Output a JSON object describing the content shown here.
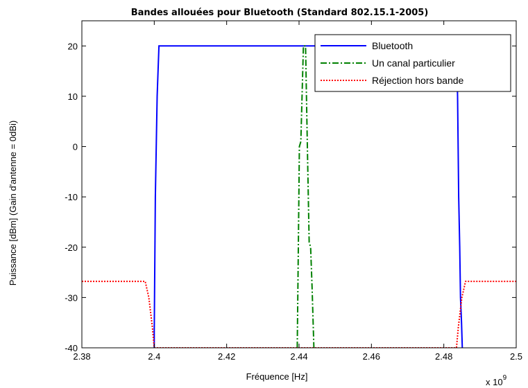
{
  "chart_data": {
    "type": "line",
    "title": "Bandes allouées pour Bluetooth (Standard 802.15.1-2005)",
    "xlabel": "Fréquence [Hz]",
    "ylabel": "Puissance [dBm] (Gain d'antenne = 0dBi)",
    "x_exponent_base": "x 10",
    "x_exponent_power": "9",
    "xlim": [
      2.38,
      2.5
    ],
    "ylim": [
      -40,
      25
    ],
    "x_ticks": [
      2.38,
      2.4,
      2.42,
      2.44,
      2.46,
      2.48,
      2.5
    ],
    "x_tick_labels": [
      "2.38",
      "2.4",
      "2.42",
      "2.44",
      "2.46",
      "2.48",
      "2.5"
    ],
    "y_ticks": [
      -40,
      -30,
      -20,
      -10,
      0,
      10,
      20
    ],
    "y_tick_labels": [
      "-40",
      "-30",
      "-20",
      "-10",
      "0",
      "10",
      "20"
    ],
    "grid": false,
    "legend_position": "top-right",
    "series": [
      {
        "name": "Bluetooth",
        "color": "#0000ff",
        "style": "solid",
        "x": [
          2.4,
          2.4,
          2.4003,
          2.4008,
          2.4013,
          2.4835,
          2.4838,
          2.4841,
          2.4844,
          2.4846,
          2.4849,
          2.4851
        ],
        "y": [
          -40,
          -37,
          -10,
          10,
          20,
          20,
          10,
          -10,
          -20,
          -30,
          -35,
          -40
        ]
      },
      {
        "name": "Un canal particulier",
        "color": "#008000",
        "style": "dashdot",
        "x": [
          2.4395,
          2.4398,
          2.4401,
          2.4405,
          2.4412,
          2.4418,
          2.4423,
          2.4428,
          2.4432,
          2.4436,
          2.4441
        ],
        "y": [
          -40,
          -20,
          0,
          1,
          20,
          20,
          0,
          -19,
          -20,
          -28,
          -40
        ]
      },
      {
        "name": "Réjection hors bande",
        "color": "#ff0000",
        "style": "dotted",
        "x": [
          2.38,
          2.3975,
          2.3985,
          2.3995,
          2.4,
          2.4835,
          2.484,
          2.485,
          2.486,
          2.5
        ],
        "y": [
          -26.8,
          -26.8,
          -30,
          -36,
          -40,
          -40,
          -36,
          -30,
          -26.8,
          -26.8
        ]
      }
    ]
  }
}
